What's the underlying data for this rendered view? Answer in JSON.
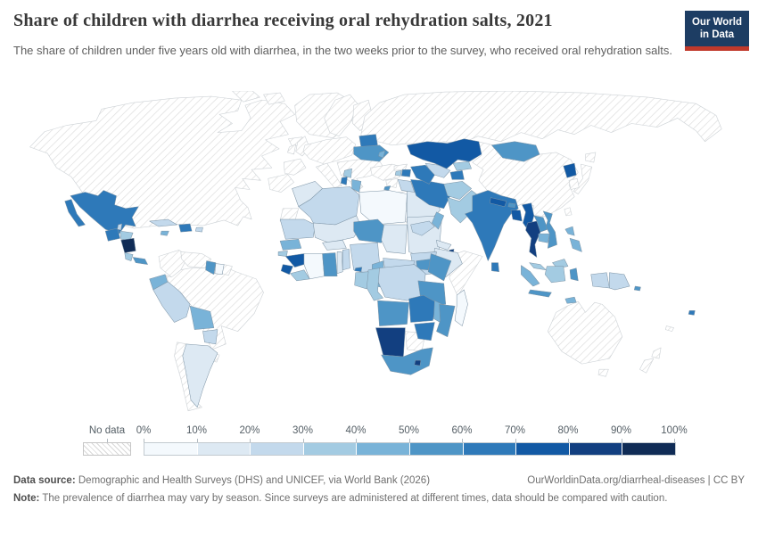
{
  "header": {
    "title": "Share of children with diarrhea receiving oral rehydration salts, 2021",
    "subtitle": "The share of children under five years old with diarrhea, in the two weeks prior to the survey, who received oral rehydration salts.",
    "logo": {
      "line1": "Our World",
      "line2": "in Data",
      "bg": "#1d3d63",
      "accent": "#c0392b"
    }
  },
  "legend": {
    "no_data_label": "No data",
    "tick_labels": [
      "0%",
      "10%",
      "20%",
      "30%",
      "40%",
      "50%",
      "60%",
      "70%",
      "80%",
      "90%",
      "100%"
    ],
    "colors": [
      "#f4f9fd",
      "#dde9f3",
      "#c3d9ec",
      "#a3cbe2",
      "#79b3d8",
      "#4e95c6",
      "#2e79b9",
      "#1259a4",
      "#123f80",
      "#102c56"
    ]
  },
  "chart_data": {
    "type": "choropleth_map",
    "title": "Share of children with diarrhea receiving oral rehydration salts, 2021",
    "unit": "%",
    "scale_buckets": [
      "0-10%",
      "10-20%",
      "20-30%",
      "30-40%",
      "40-50%",
      "50-60%",
      "60-70%",
      "70-80%",
      "80-90%",
      "90-100%"
    ],
    "countries": {
      "north-america": "nd",
      "arctic-1": "nd",
      "arctic-2": "nd",
      "greenland": "nd",
      "iceland": "nd",
      "uk": "nd",
      "ireland": "nd",
      "scandinavia": "nd",
      "finland": "nd",
      "iberia": "nd",
      "france": "nd",
      "central-europe": "nd",
      "italy": "nd",
      "balkans": "nd",
      "russia": "nd",
      "china": "nd",
      "japan-hokkaido": "nd",
      "japan-main": "nd",
      "south-korea": "nd",
      "taiwan": "nd",
      "turkey": "nd",
      "syria": "nd",
      "georgia": "nd",
      "saudi-arabia": "nd",
      "somalia": "nd",
      "botswana": "nd",
      "western-sahara": "nd",
      "australia": "nd",
      "tasmania": "nd",
      "new-zealand-north": "nd",
      "new-zealand-south": "nd",
      "new-caledonia": "nd",
      "colombia": "nd",
      "venezuela": "nd",
      "brazil": "nd",
      "chile": "nd",
      "uruguay": "nd",
      "french-guiana": "nd",
      "mexico": 6,
      "guatemala": 6,
      "belize": 2,
      "honduras": 3,
      "nicaragua": 9,
      "costa-rica": 3,
      "panama": 5,
      "cuba": 2,
      "jamaica": 4,
      "hispaniola": 6,
      "puerto-rico": 2,
      "guyana": 5,
      "suriname": 0,
      "ecuador": 4,
      "peru": 2,
      "bolivia": 4,
      "paraguay": 2,
      "argentina": 1,
      "belarus": 6,
      "ukraine": 5,
      "moldova": 4,
      "serbia": 3,
      "albania": 6,
      "armenia": 3,
      "azerbaijan": 6,
      "cyprus": 5,
      "morocco": 1,
      "algeria": 2,
      "tunisia": 4,
      "libya": 0,
      "egypt": 1,
      "mauritania": 2,
      "mali": 1,
      "niger": 5,
      "chad": 1,
      "sudan": 1,
      "eritrea": 1,
      "djibouti": 8,
      "ethiopia": 1,
      "south-sudan": 2,
      "senegal": 4,
      "guinea-bissau": 3,
      "guinea": 7,
      "sierra-leone": 7,
      "liberia": 3,
      "cote-divoire": 0,
      "ghana": 5,
      "togo": 1,
      "benin": 2,
      "burkina-faso": 1,
      "nigeria": 2,
      "cameroon": 4,
      "eq-guinea": 6,
      "car": 2,
      "uganda": 5,
      "kenya": 5,
      "rwanda-burundi": 4,
      "drc": 2,
      "congo": 3,
      "gabon": 3,
      "tanzania": 5,
      "angola": 5,
      "zambia": 6,
      "malawi": 4,
      "mozambique": 5,
      "zimbabwe": 6,
      "namibia": 8,
      "south-africa": 5,
      "lesotho": 8,
      "madagascar": 0,
      "iraq": 2,
      "iran": 6,
      "oman": 4,
      "yemen": 2,
      "kazakhstan": 7,
      "uzbekistan": 2,
      "turkmenistan": 6,
      "kyrgyzstan": 3,
      "tajikistan": 6,
      "afghanistan": 3,
      "pakistan": 3,
      "india": 6,
      "nepal": 7,
      "bhutan": 5,
      "bangladesh": 7,
      "sri-lanka": 6,
      "myanmar": 7,
      "thailand": 8,
      "laos": 5,
      "cambodia": 4,
      "vietnam": 5,
      "malaysia": 3,
      "indonesia-sumatra": 4,
      "indonesia-java": 5,
      "indonesia-kalimantan": 3,
      "indonesia-sulawesi": 5,
      "indonesia-papua": 2,
      "png": 2,
      "timor": 4,
      "solomon": 5,
      "fiji": 6,
      "philippines": 4,
      "mongolia": 5,
      "north-korea": 7
    }
  },
  "footer": {
    "source_label": "Data source:",
    "source_text": "Demographic and Health Surveys (DHS) and UNICEF, via World Bank (2026)",
    "attribution": "OurWorldinData.org/diarrheal-diseases | CC BY",
    "note_label": "Note:",
    "note_text": "The prevalence of diarrhea may vary by season. Since surveys are administered at different times, data should be compared with caution."
  }
}
